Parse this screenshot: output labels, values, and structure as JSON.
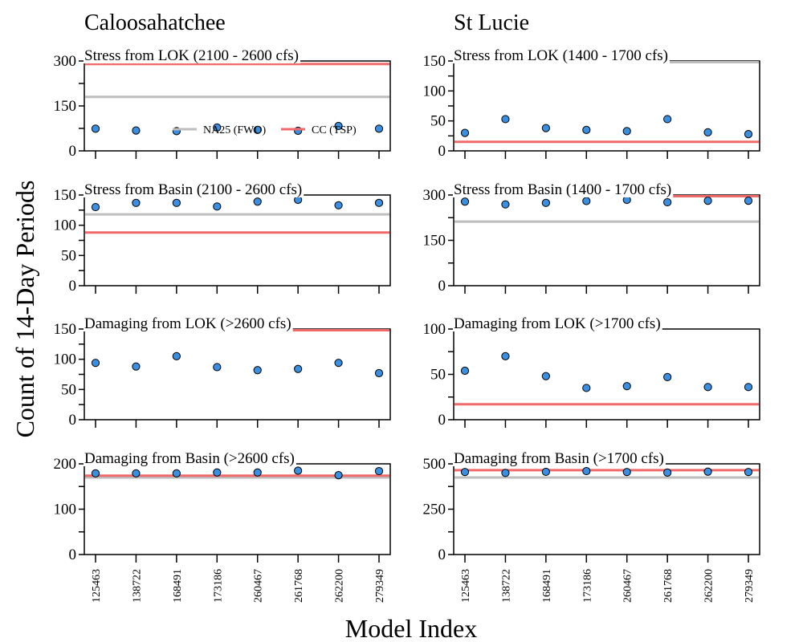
{
  "figure": {
    "ylabel": "Count of 14-Day Periods",
    "xlabel": "Model Index",
    "columns": [
      "Caloosahatchee",
      "St Lucie"
    ]
  },
  "colors": {
    "NA25 (FWO)": "#bebebe",
    "CC (TSP)": "#f06a6a",
    "point_fill": "#3a8fe0",
    "point_stroke": "#000000"
  },
  "legend": [
    {
      "label": "NA25 (FWO)",
      "color": "#bebebe"
    },
    {
      "label": "CC (TSP)",
      "color": "#f06a6a"
    }
  ],
  "chart_data": [
    {
      "type": "scatter",
      "column": "Caloosahatchee",
      "title": "Stress from LOK (2100 - 2600 cfs)",
      "categories": [
        "125463",
        "138722",
        "168491",
        "173186",
        "260467",
        "261768",
        "262200",
        "279349"
      ],
      "values": [
        74,
        68,
        66,
        78,
        70,
        67,
        83,
        74
      ],
      "reference_lines": [
        {
          "name": "NA25 (FWO)",
          "value": 180
        },
        {
          "name": "CC (TSP)",
          "value": 290
        }
      ],
      "ylim": [
        0,
        300
      ],
      "yticks": [
        0,
        150,
        300
      ],
      "legend": "bottom-right"
    },
    {
      "type": "scatter",
      "column": "St Lucie",
      "title": "Stress from LOK (1400 - 1700 cfs)",
      "categories": [
        "125463",
        "138722",
        "168491",
        "173186",
        "260467",
        "261768",
        "262200",
        "279349"
      ],
      "values": [
        30,
        53,
        38,
        35,
        33,
        53,
        31,
        28
      ],
      "reference_lines": [
        {
          "name": "NA25 (FWO)",
          "value": 150
        },
        {
          "name": "CC (TSP)",
          "value": 15
        }
      ],
      "ylim": [
        0,
        150
      ],
      "yticks": [
        0,
        50,
        100,
        150
      ]
    },
    {
      "type": "scatter",
      "column": "Caloosahatchee",
      "title": "Stress from Basin (2100 - 2600 cfs)",
      "categories": [
        "125463",
        "138722",
        "168491",
        "173186",
        "260467",
        "261768",
        "262200",
        "279349"
      ],
      "values": [
        130,
        137,
        137,
        131,
        139,
        142,
        133,
        137
      ],
      "reference_lines": [
        {
          "name": "NA25 (FWO)",
          "value": 118
        },
        {
          "name": "CC (TSP)",
          "value": 88
        }
      ],
      "ylim": [
        0,
        150
      ],
      "yticks": [
        0,
        50,
        100,
        150
      ]
    },
    {
      "type": "scatter",
      "column": "St Lucie",
      "title": "Stress from Basin (1400 - 1700 cfs)",
      "categories": [
        "125463",
        "138722",
        "168491",
        "173186",
        "260467",
        "261768",
        "262200",
        "279349"
      ],
      "values": [
        278,
        269,
        274,
        280,
        284,
        276,
        281,
        281
      ],
      "reference_lines": [
        {
          "name": "NA25 (FWO)",
          "value": 212
        },
        {
          "name": "CC (TSP)",
          "value": 305
        }
      ],
      "ylim": [
        0,
        300
      ],
      "yticks": [
        0,
        150,
        300
      ]
    },
    {
      "type": "scatter",
      "column": "Caloosahatchee",
      "title": "Damaging from LOK (>2600 cfs)",
      "categories": [
        "125463",
        "138722",
        "168491",
        "173186",
        "260467",
        "261768",
        "262200",
        "279349"
      ],
      "values": [
        94,
        88,
        105,
        87,
        82,
        84,
        94,
        77
      ],
      "reference_lines": [
        {
          "name": "CC (TSP)",
          "value": 155
        }
      ],
      "ylim": [
        0,
        150
      ],
      "yticks": [
        0,
        50,
        100,
        150
      ]
    },
    {
      "type": "scatter",
      "column": "St Lucie",
      "title": "Damaging from LOK (>1700 cfs)",
      "categories": [
        "125463",
        "138722",
        "168491",
        "173186",
        "260467",
        "261768",
        "262200",
        "279349"
      ],
      "values": [
        54,
        70,
        48,
        35,
        37,
        47,
        36,
        36
      ],
      "reference_lines": [
        {
          "name": "CC (TSP)",
          "value": 17
        }
      ],
      "ylim": [
        0,
        100
      ],
      "yticks": [
        0,
        50,
        100
      ]
    },
    {
      "type": "scatter",
      "column": "Caloosahatchee",
      "title": "Damaging from Basin (>2600 cfs)",
      "categories": [
        "125463",
        "138722",
        "168491",
        "173186",
        "260467",
        "261768",
        "262200",
        "279349"
      ],
      "values": [
        179,
        179,
        179,
        181,
        181,
        185,
        175,
        184
      ],
      "reference_lines": [
        {
          "name": "NA25 (FWO)",
          "value": 170
        },
        {
          "name": "CC (TSP)",
          "value": 174
        }
      ],
      "ylim": [
        0,
        200
      ],
      "yticks": [
        0,
        100,
        200
      ]
    },
    {
      "type": "scatter",
      "column": "St Lucie",
      "title": "Damaging from Basin (>1700 cfs)",
      "categories": [
        "125463",
        "138722",
        "168491",
        "173186",
        "260467",
        "261768",
        "262200",
        "279349"
      ],
      "values": [
        455,
        450,
        456,
        460,
        455,
        452,
        457,
        455
      ],
      "reference_lines": [
        {
          "name": "NA25 (FWO)",
          "value": 425
        },
        {
          "name": "CC (TSP)",
          "value": 465
        }
      ],
      "ylim": [
        0,
        500
      ],
      "yticks": [
        0,
        250,
        500
      ]
    }
  ]
}
